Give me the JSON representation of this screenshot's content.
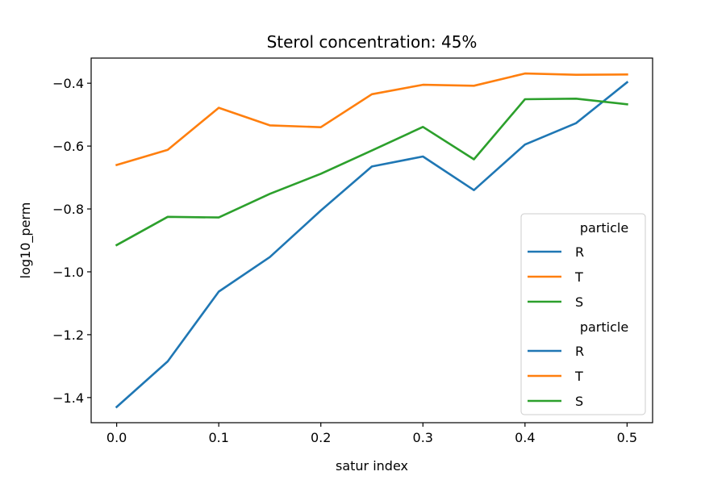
{
  "chart_data": {
    "type": "line",
    "title": "Sterol concentration: 45%",
    "xlabel": "satur index",
    "ylabel": "log10_perm",
    "x": [
      0.0,
      0.05,
      0.1,
      0.15,
      0.2,
      0.25,
      0.3,
      0.35,
      0.4,
      0.45,
      0.5
    ],
    "xlim": [
      -0.025,
      0.525
    ],
    "ylim": [
      -1.48,
      -0.32
    ],
    "xticks": [
      0.0,
      0.1,
      0.2,
      0.3,
      0.4,
      0.5
    ],
    "xtick_labels": [
      "0.0",
      "0.1",
      "0.2",
      "0.3",
      "0.4",
      "0.5"
    ],
    "yticks": [
      -1.4,
      -1.2,
      -1.0,
      -0.8,
      -0.6,
      -0.4
    ],
    "ytick_labels": [
      "−1.4",
      "−1.2",
      "−1.0",
      "−0.8",
      "−0.6",
      "−0.4"
    ],
    "grid": false,
    "legend_position": "lower-right",
    "series": [
      {
        "name": "R",
        "color": "#1f77b4",
        "values": [
          -1.43,
          -1.285,
          -1.063,
          -0.953,
          -0.805,
          -0.665,
          -0.633,
          -0.74,
          -0.595,
          -0.527,
          -0.397
        ]
      },
      {
        "name": "T",
        "color": "#ff7f0e",
        "values": [
          -0.66,
          -0.612,
          -0.478,
          -0.534,
          -0.54,
          -0.435,
          -0.405,
          -0.408,
          -0.369,
          -0.373,
          -0.372
        ]
      },
      {
        "name": "S",
        "color": "#2ca02c",
        "values": [
          -0.915,
          -0.825,
          -0.827,
          -0.752,
          -0.688,
          -0.614,
          -0.539,
          -0.642,
          -0.451,
          -0.449,
          -0.467
        ]
      }
    ],
    "legend": [
      {
        "title": "particle",
        "entries": [
          {
            "label": "R",
            "color": "#1f77b4"
          },
          {
            "label": "T",
            "color": "#ff7f0e"
          },
          {
            "label": "S",
            "color": "#2ca02c"
          }
        ]
      },
      {
        "title": "particle",
        "entries": [
          {
            "label": "R",
            "color": "#1f77b4"
          },
          {
            "label": "T",
            "color": "#ff7f0e"
          },
          {
            "label": "S",
            "color": "#2ca02c"
          }
        ]
      }
    ]
  }
}
